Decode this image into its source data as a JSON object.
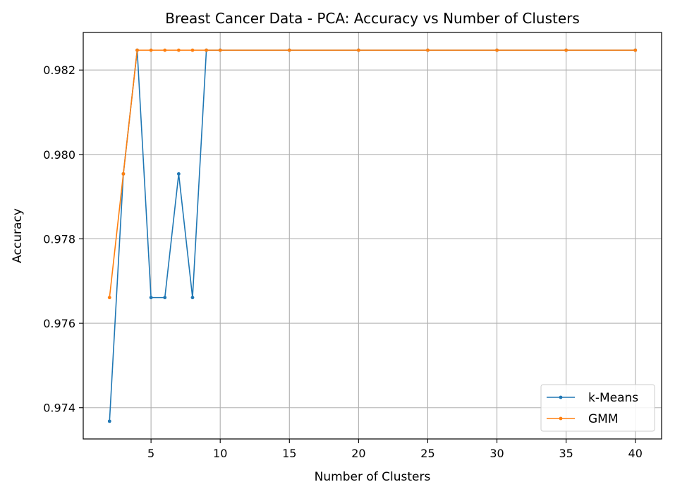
{
  "chart_data": {
    "type": "line",
    "title": "Breast Cancer Data - PCA: Accuracy vs Number of Clusters",
    "xlabel": "Number of Clusters",
    "ylabel": "Accuracy",
    "xlim": [
      0.1,
      41.9
    ],
    "ylim": [
      0.97326,
      0.98289
    ],
    "xticks": [
      5,
      10,
      15,
      20,
      25,
      30,
      35,
      40
    ],
    "xtick_labels": [
      "5",
      "10",
      "15",
      "20",
      "25",
      "30",
      "35",
      "40"
    ],
    "yticks": [
      0.974,
      0.976,
      0.978,
      0.98,
      0.982
    ],
    "ytick_labels": [
      "0.974",
      "0.976",
      "0.978",
      "0.980",
      "0.982"
    ],
    "grid": true,
    "legend_position": "lower-right",
    "x": [
      2,
      3,
      4,
      5,
      6,
      7,
      8,
      9,
      10,
      15,
      20,
      25,
      30,
      35,
      40
    ],
    "series": [
      {
        "name": "k-Means",
        "color": "#1f77b4",
        "values": [
          0.97368,
          0.97954,
          0.98247,
          0.97661,
          0.97661,
          0.97954,
          0.97661,
          0.98247,
          0.98247,
          0.98247,
          0.98247,
          0.98247,
          0.98247,
          0.98247,
          0.98247
        ]
      },
      {
        "name": "GMM",
        "color": "#ff7f0e",
        "values": [
          0.97661,
          0.97954,
          0.98247,
          0.98247,
          0.98247,
          0.98247,
          0.98247,
          0.98247,
          0.98247,
          0.98247,
          0.98247,
          0.98247,
          0.98247,
          0.98247,
          0.98247
        ]
      }
    ]
  }
}
